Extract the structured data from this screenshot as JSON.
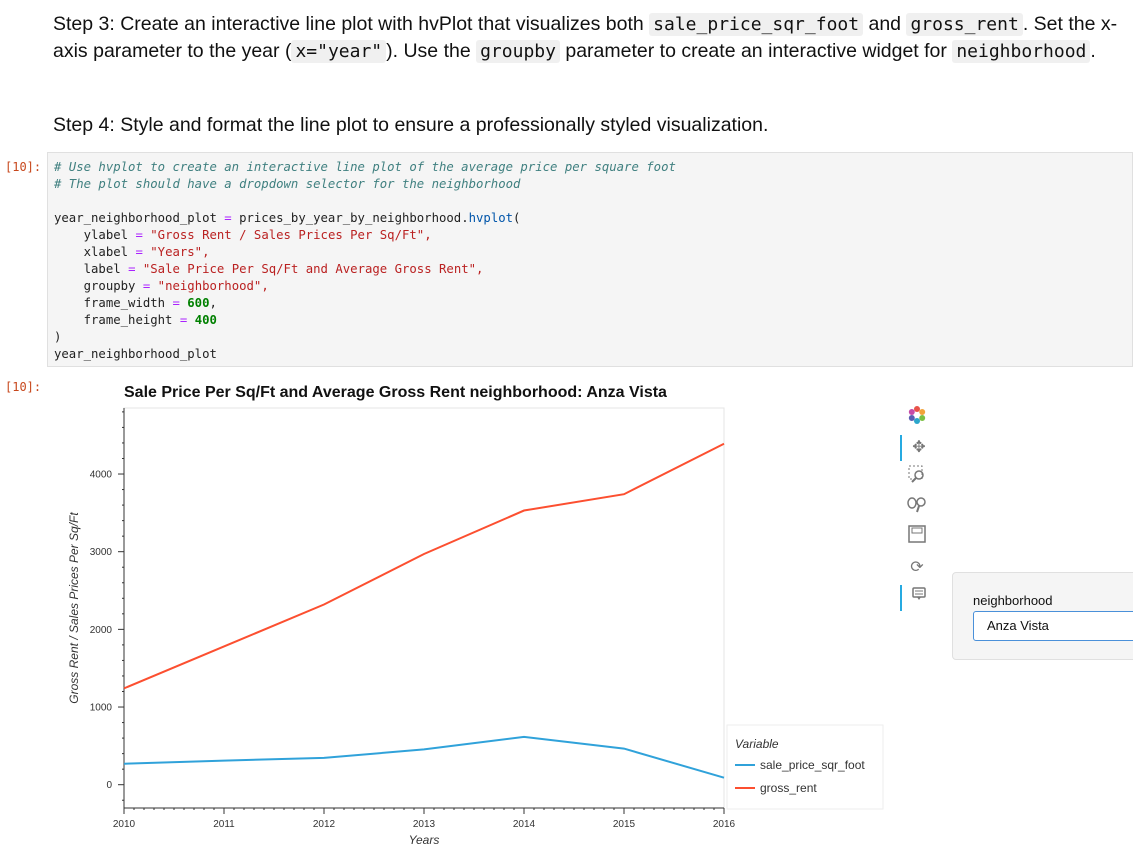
{
  "markdown": {
    "step3": {
      "p1": "Step 3: Create an interactive line plot with hvPlot that visualizes both ",
      "code1": "sale_price_sqr_foot",
      "p2": " and ",
      "code2": "gross_rent",
      "p3": ". Set the x-axis parameter to the year (",
      "code3": "x=\"year\"",
      "p4": "). Use the ",
      "code4": "groupby",
      "p5": " parameter to create an interactive widget for ",
      "code5": "neighborhood",
      "p6": "."
    },
    "step4": "Step 4: Style and format the line plot to ensure a professionally styled visualization."
  },
  "cell": {
    "in_prompt": "[10]:",
    "out_prompt": "[10]:",
    "code": {
      "comment1": "# Use hvplot to create an interactive line plot of the average price per square foot",
      "comment2": "# The plot should have a dropdown selector for the neighborhood",
      "assign_var": "year_neighborhood_plot",
      "eq": "=",
      "call_obj": "prices_by_year_by_neighborhood.",
      "call_fn": "hvplot",
      "open_paren": "(",
      "args": [
        {
          "name": "ylabel",
          "value": "\"Gross Rent / Sales Prices Per Sq/Ft\",",
          "kind": "str"
        },
        {
          "name": "xlabel",
          "value": "\"Years\",",
          "kind": "str"
        },
        {
          "name": "label",
          "value": "\"Sale Price Per Sq/Ft and Average Gross Rent\",",
          "kind": "str"
        },
        {
          "name": "groupby",
          "value": "\"neighborhood\",",
          "kind": "str"
        },
        {
          "name": "frame_width",
          "value": "600",
          "tail": ",",
          "kind": "num"
        },
        {
          "name": "frame_height",
          "value": "400",
          "tail": "",
          "kind": "num"
        }
      ],
      "close_paren": ")",
      "last_line": "year_neighborhood_plot"
    }
  },
  "plot": {
    "title": "Sale Price Per Sq/Ft and Average Gross Rent  neighborhood: Anza Vista",
    "legend_title": "Variable",
    "toolbar_icons": [
      "bokeh-logo-icon",
      "pan-icon",
      "box-zoom-icon",
      "wheel-zoom-icon",
      "save-icon",
      "reset-icon",
      "hover-icon"
    ]
  },
  "widget": {
    "label": "neighborhood",
    "selected": "Anza Vista"
  },
  "chart_data": {
    "type": "line",
    "title": "Sale Price Per Sq/Ft and Average Gross Rent  neighborhood: Anza Vista",
    "xlabel": "Years",
    "ylabel": "Gross Rent / Sales Prices Per Sq/Ft",
    "x": [
      2010,
      2011,
      2012,
      2013,
      2014,
      2015,
      2016
    ],
    "x_ticks": [
      "2010",
      "2011",
      "2012",
      "2013",
      "2014",
      "2015",
      "2016"
    ],
    "y_ticks": [
      "0",
      "1000",
      "2000",
      "3000",
      "4000"
    ],
    "xlim": [
      2010,
      2016
    ],
    "ylim": [
      -300,
      4850
    ],
    "legend_position": "bottom-right outside",
    "grid": false,
    "series": [
      {
        "name": "sale_price_sqr_foot",
        "color": "#30a2da",
        "values": [
          270,
          310,
          345,
          455,
          615,
          465,
          90
        ]
      },
      {
        "name": "gross_rent",
        "color": "#fc4f30",
        "values": [
          1240,
          1780,
          2320,
          2970,
          3530,
          3740,
          4390
        ]
      }
    ]
  }
}
